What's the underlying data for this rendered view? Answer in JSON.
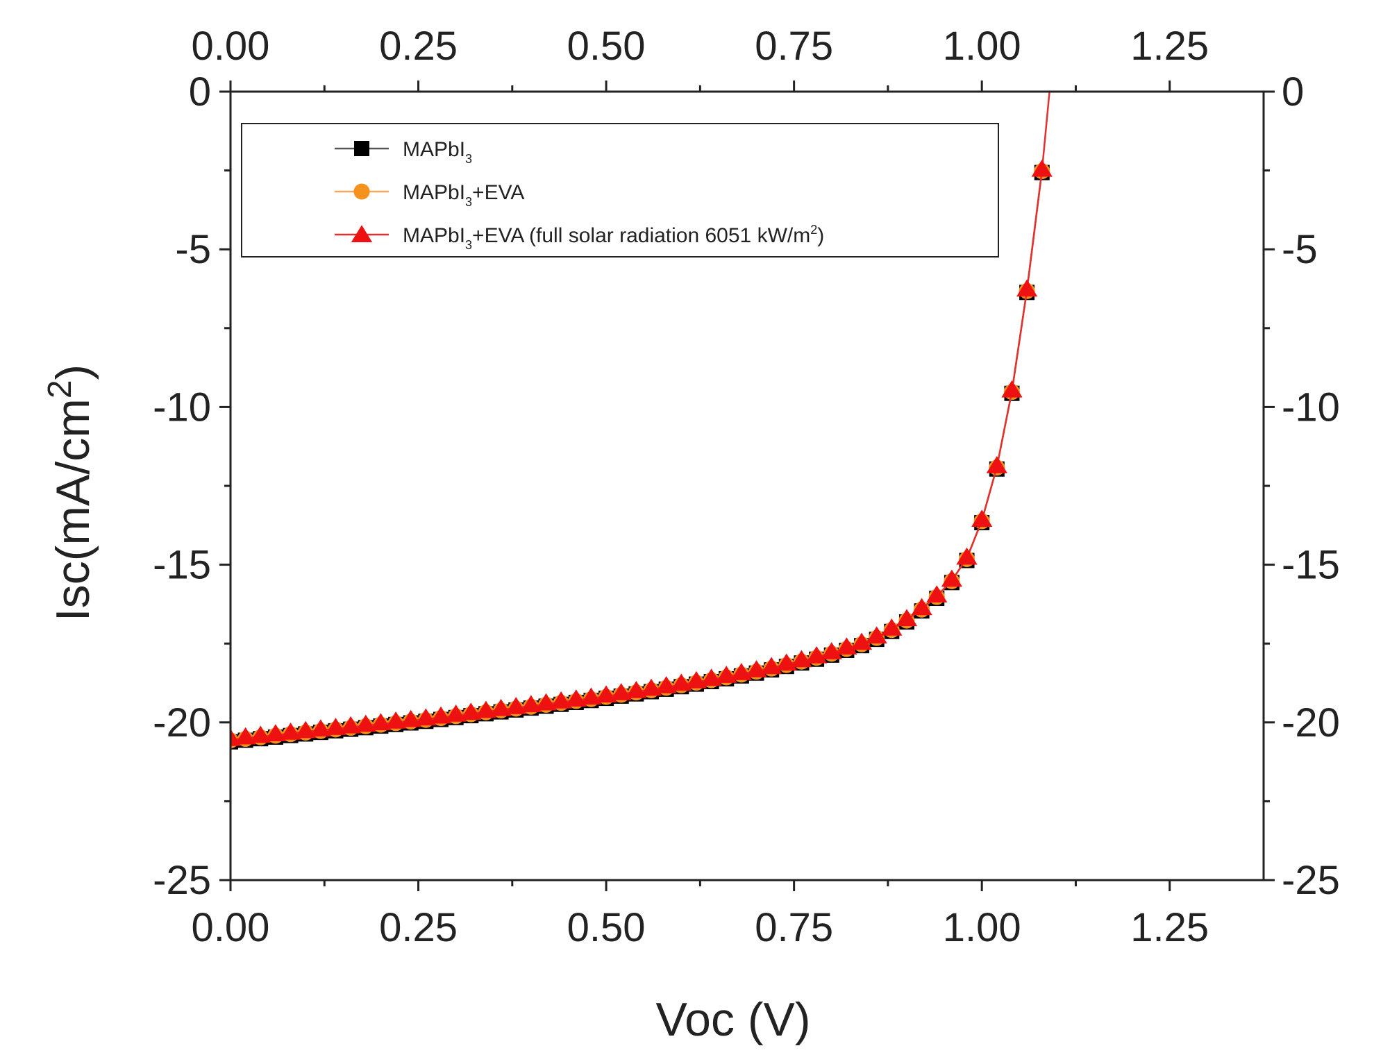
{
  "chart_data": {
    "type": "line",
    "xlabel": "Voc (V)",
    "ylabel": "Isc(mA/cm2)",
    "ylabel_parts": {
      "main": "Isc(mA/cm",
      "sup": "2",
      "end": ")"
    },
    "xlim": [
      0,
      1.375
    ],
    "ylim": [
      -25,
      0
    ],
    "x_ticks": [
      0,
      0.25,
      0.5,
      0.75,
      1.0,
      1.25
    ],
    "x_tick_labels": [
      "0.00",
      "0.25",
      "0.50",
      "0.75",
      "1.00",
      "1.25"
    ],
    "y_ticks": [
      0,
      -5,
      -10,
      -15,
      -20,
      -25
    ],
    "y_tick_labels": [
      "0",
      "-5",
      "-10",
      "-15",
      "-20",
      "-25"
    ],
    "legend_position": "top-left",
    "series": [
      {
        "name": "MAPbI3",
        "label_parts": {
          "a": "MAPbI",
          "sub": "3",
          "b": ""
        },
        "marker": "square",
        "color": "#000000",
        "line_color": "#555555",
        "x": [
          0.0,
          0.02,
          0.04,
          0.06,
          0.08,
          0.1,
          0.12,
          0.14,
          0.16,
          0.18,
          0.2,
          0.22,
          0.24,
          0.26,
          0.28,
          0.3,
          0.32,
          0.34,
          0.36,
          0.38,
          0.4,
          0.42,
          0.44,
          0.46,
          0.48,
          0.5,
          0.52,
          0.54,
          0.56,
          0.58,
          0.6,
          0.62,
          0.64,
          0.66,
          0.68,
          0.7,
          0.72,
          0.74,
          0.76,
          0.78,
          0.8,
          0.82,
          0.84,
          0.86,
          0.88,
          0.9,
          0.92,
          0.94,
          0.96,
          0.98,
          1.0,
          1.02,
          1.04,
          1.06,
          1.08
        ],
        "y": [
          -20.55,
          -20.5,
          -20.45,
          -20.4,
          -20.35,
          -20.3,
          -20.25,
          -20.2,
          -20.15,
          -20.1,
          -20.05,
          -20.0,
          -19.95,
          -19.9,
          -19.84,
          -19.78,
          -19.72,
          -19.66,
          -19.6,
          -19.54,
          -19.48,
          -19.42,
          -19.36,
          -19.3,
          -19.24,
          -19.17,
          -19.1,
          -19.03,
          -18.96,
          -18.88,
          -18.8,
          -18.72,
          -18.64,
          -18.55,
          -18.46,
          -18.37,
          -18.27,
          -18.16,
          -18.05,
          -17.93,
          -17.8,
          -17.65,
          -17.5,
          -17.3,
          -17.05,
          -16.75,
          -16.4,
          -16.0,
          -15.5,
          -14.8,
          -13.6,
          -11.9,
          -9.5,
          -6.3,
          -2.5
        ]
      },
      {
        "name": "MAPbI3+EVA",
        "label_parts": {
          "a": "MAPbI",
          "sub": "3",
          "b": "+EVA"
        },
        "marker": "circle",
        "color": "#f5921e",
        "line_color": "#f5a85a",
        "x": [
          0.0,
          0.02,
          0.04,
          0.06,
          0.08,
          0.1,
          0.12,
          0.14,
          0.16,
          0.18,
          0.2,
          0.22,
          0.24,
          0.26,
          0.28,
          0.3,
          0.32,
          0.34,
          0.36,
          0.38,
          0.4,
          0.42,
          0.44,
          0.46,
          0.48,
          0.5,
          0.52,
          0.54,
          0.56,
          0.58,
          0.6,
          0.62,
          0.64,
          0.66,
          0.68,
          0.7,
          0.72,
          0.74,
          0.76,
          0.78,
          0.8,
          0.82,
          0.84,
          0.86,
          0.88,
          0.9,
          0.92,
          0.94,
          0.96,
          0.98,
          1.0,
          1.02,
          1.04,
          1.06,
          1.08
        ],
        "y": [
          -20.55,
          -20.5,
          -20.45,
          -20.4,
          -20.35,
          -20.3,
          -20.25,
          -20.2,
          -20.15,
          -20.1,
          -20.05,
          -20.0,
          -19.95,
          -19.9,
          -19.84,
          -19.78,
          -19.72,
          -19.66,
          -19.6,
          -19.54,
          -19.48,
          -19.42,
          -19.36,
          -19.3,
          -19.24,
          -19.17,
          -19.1,
          -19.03,
          -18.96,
          -18.88,
          -18.8,
          -18.72,
          -18.64,
          -18.55,
          -18.46,
          -18.37,
          -18.27,
          -18.16,
          -18.05,
          -17.93,
          -17.8,
          -17.65,
          -17.5,
          -17.3,
          -17.05,
          -16.75,
          -16.4,
          -16.0,
          -15.5,
          -14.8,
          -13.6,
          -11.9,
          -9.5,
          -6.3,
          -2.5
        ]
      },
      {
        "name": "MAPbI3+EVA (full solar radiation 6051 kW/m2)",
        "label_parts": {
          "a": "MAPbI",
          "sub": "3",
          "b": "+EVA (full solar radiation 6051 kW/m",
          "sup": "2",
          "c": ")"
        },
        "marker": "triangle",
        "color": "#ee1111",
        "line_color": "#e03030",
        "x": [
          0.0,
          0.02,
          0.04,
          0.06,
          0.08,
          0.1,
          0.12,
          0.14,
          0.16,
          0.18,
          0.2,
          0.22,
          0.24,
          0.26,
          0.28,
          0.3,
          0.32,
          0.34,
          0.36,
          0.38,
          0.4,
          0.42,
          0.44,
          0.46,
          0.48,
          0.5,
          0.52,
          0.54,
          0.56,
          0.58,
          0.6,
          0.62,
          0.64,
          0.66,
          0.68,
          0.7,
          0.72,
          0.74,
          0.76,
          0.78,
          0.8,
          0.82,
          0.84,
          0.86,
          0.88,
          0.9,
          0.92,
          0.94,
          0.96,
          0.98,
          1.0,
          1.02,
          1.04,
          1.06,
          1.08,
          1.09
        ],
        "y": [
          -20.55,
          -20.5,
          -20.45,
          -20.4,
          -20.35,
          -20.3,
          -20.25,
          -20.2,
          -20.15,
          -20.1,
          -20.05,
          -20.0,
          -19.95,
          -19.9,
          -19.84,
          -19.78,
          -19.72,
          -19.66,
          -19.6,
          -19.54,
          -19.48,
          -19.42,
          -19.36,
          -19.3,
          -19.24,
          -19.17,
          -19.1,
          -19.03,
          -18.96,
          -18.88,
          -18.8,
          -18.72,
          -18.64,
          -18.55,
          -18.46,
          -18.37,
          -18.27,
          -18.16,
          -18.05,
          -17.93,
          -17.8,
          -17.65,
          -17.5,
          -17.3,
          -17.05,
          -16.75,
          -16.4,
          -16.0,
          -15.5,
          -14.8,
          -13.6,
          -11.9,
          -9.5,
          -6.3,
          -2.5,
          0.0
        ],
        "marker_count": 55
      }
    ]
  }
}
